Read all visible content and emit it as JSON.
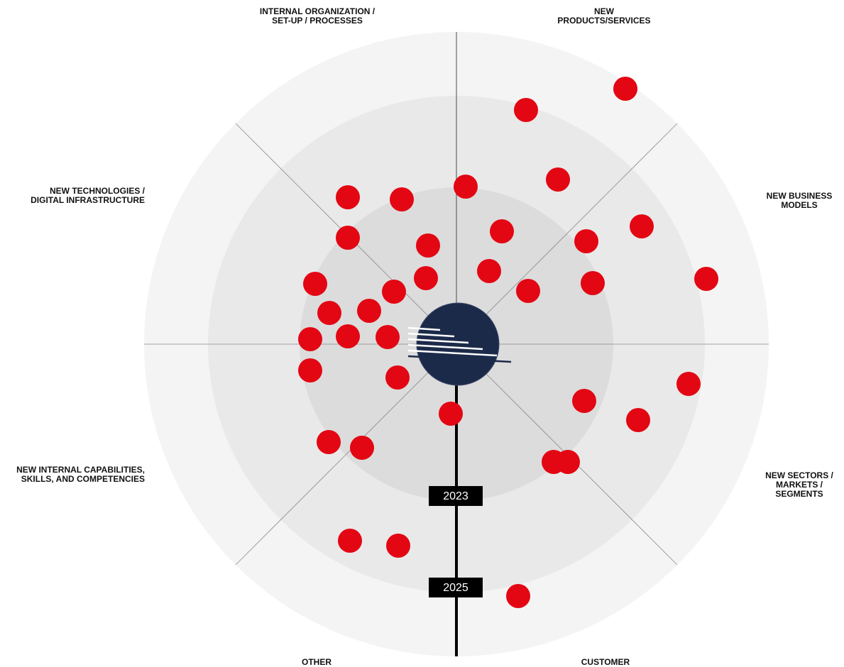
{
  "sectors": [
    {
      "lines": [
        "INTERNAL ORGANIZATION /",
        "SET-UP / PROCESSES"
      ]
    },
    {
      "lines": [
        "NEW",
        "PRODUCTS/SERVICES"
      ]
    },
    {
      "lines": [
        "NEW TECHNOLOGIES /",
        "DIGITAL INFRASTRUCTURE"
      ]
    },
    {
      "lines": [
        "NEW BUSINESS",
        "MODELS"
      ]
    },
    {
      "lines": [
        "NEW INTERNAL CAPABILITIES,",
        "SKILLS, AND COMPETENCIES"
      ]
    },
    {
      "lines": [
        "NEW  SECTORS /",
        "MARKETS /",
        "SEGMENTS"
      ]
    },
    {
      "lines": [
        "OTHER"
      ]
    },
    {
      "lines": [
        "CUSTOMER"
      ]
    }
  ],
  "rings": [
    "2023",
    "2025"
  ]
}
